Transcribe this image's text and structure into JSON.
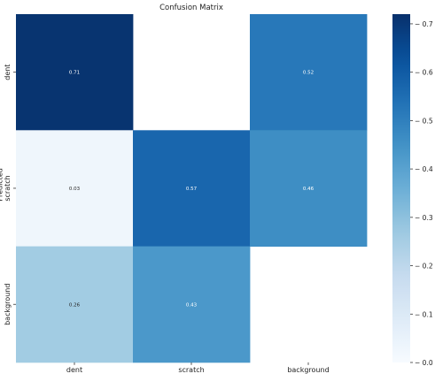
{
  "chart_data": {
    "type": "heatmap",
    "title": "Confusion Matrix",
    "xlabel": "",
    "ylabel": "Predicted",
    "x_categories": [
      "dent",
      "scratch",
      "background"
    ],
    "y_categories": [
      "dent",
      "scratch",
      "background"
    ],
    "values": [
      [
        0.71,
        null,
        0.52
      ],
      [
        0.03,
        0.57,
        0.46
      ],
      [
        0.26,
        0.43,
        null
      ]
    ],
    "value_labels": [
      [
        "0.71",
        "",
        "0.52"
      ],
      [
        "0.03",
        "0.57",
        "0.46"
      ],
      [
        "0.26",
        "0.43",
        ""
      ]
    ],
    "colormap": "Blues",
    "colorbar": {
      "range": [
        0,
        0.72
      ],
      "ticks": [
        0.0,
        0.1,
        0.2,
        0.3,
        0.4,
        0.5,
        0.6,
        0.7
      ],
      "tick_labels": [
        "0.0",
        "0.1",
        "0.2",
        "0.3",
        "0.4",
        "0.5",
        "0.6",
        "0.7"
      ]
    },
    "grid": false
  }
}
